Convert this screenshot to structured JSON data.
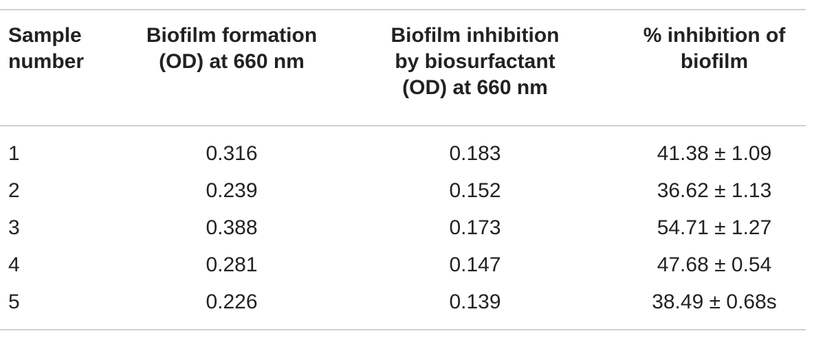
{
  "table": {
    "headers": [
      [
        "Sample",
        "number"
      ],
      [
        "Biofilm formation",
        "(OD) at 660 nm"
      ],
      [
        "Biofilm inhibition",
        "by biosurfactant",
        "(OD) at 660 nm"
      ],
      [
        "% inhibition of",
        "biofilm"
      ]
    ],
    "rows": [
      [
        "1",
        "0.316",
        "0.183",
        "41.38 ± 1.09"
      ],
      [
        "2",
        "0.239",
        "0.152",
        "36.62 ± 1.13"
      ],
      [
        "3",
        "0.388",
        "0.173",
        "54.71 ± 1.27"
      ],
      [
        "4",
        "0.281",
        "0.147",
        "47.68 ± 0.54"
      ],
      [
        "5",
        "0.226",
        "0.139",
        "38.49 ± 0.68s"
      ]
    ]
  }
}
